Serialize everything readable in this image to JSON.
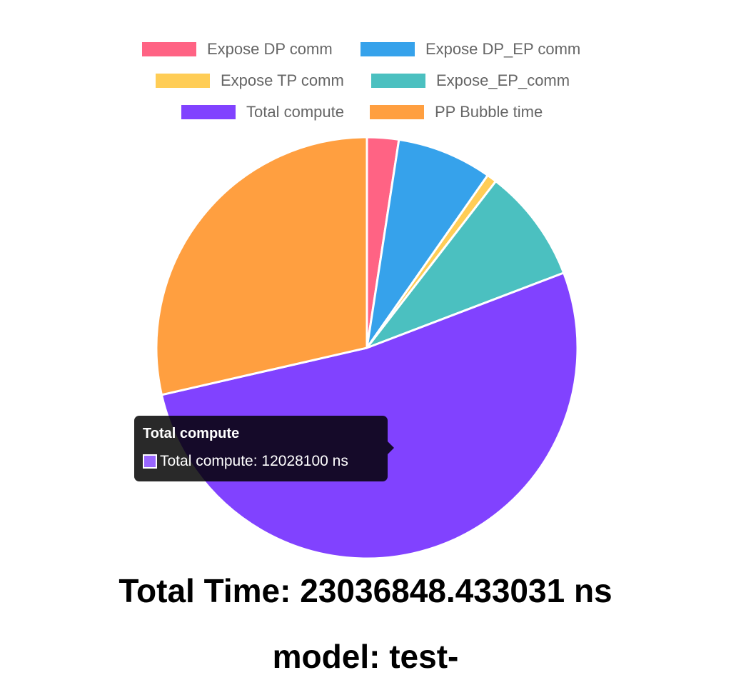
{
  "chart_data": {
    "type": "pie",
    "categories": [
      "Expose DP comm",
      "Expose DP_EP comm",
      "Expose TP comm",
      "Expose_EP_comm",
      "Total compute",
      "PP Bubble time"
    ],
    "values": [
      560000,
      1680000,
      175000,
      2010000,
      12028100,
      6583748
    ],
    "colors": [
      "#ff6384",
      "#36a2eb",
      "#ffcd56",
      "#4bc0c0",
      "#8142ff",
      "#ff9f40"
    ],
    "legend_position": "top",
    "tooltip": {
      "title": "Total compute",
      "text": "Total compute: 12028100 ns",
      "color": "#9966ff"
    }
  },
  "footer": {
    "total_time": "Total Time: 23036848.433031 ns",
    "model": "model: test-"
  }
}
